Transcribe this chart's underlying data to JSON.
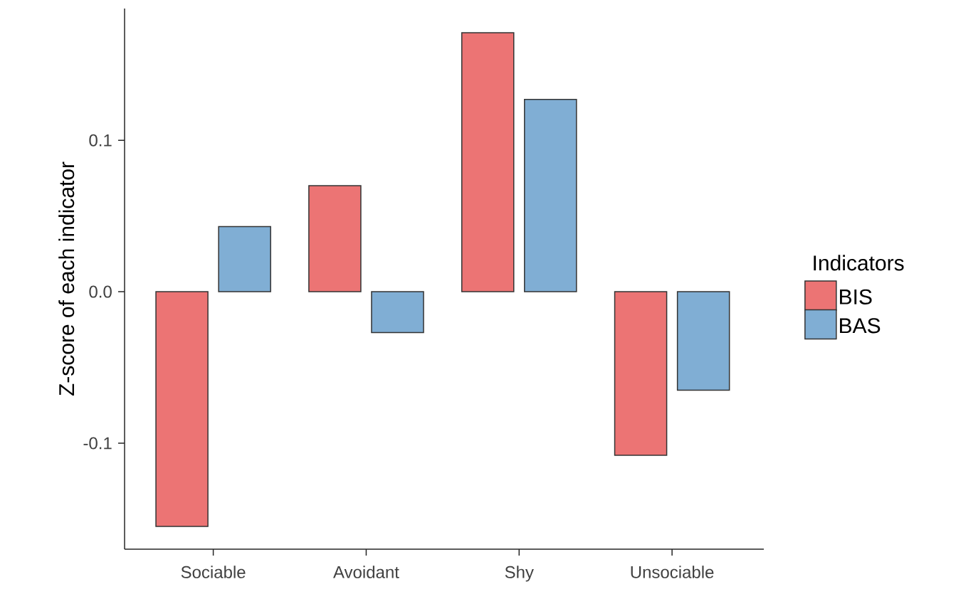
{
  "chart_data": {
    "type": "bar",
    "ylabel": "Z-score of each indicator",
    "legend_title": "Indicators",
    "legend": "right",
    "categories": [
      "Sociable",
      "Avoidant",
      "Shy",
      "Unsociable"
    ],
    "series": [
      {
        "name": "BIS",
        "color": "#ec7474",
        "values": [
          -0.155,
          0.07,
          0.171,
          -0.108
        ]
      },
      {
        "name": "BAS",
        "color": "#80aed4",
        "values": [
          0.043,
          -0.027,
          0.127,
          -0.065
        ]
      }
    ],
    "ylim": [
      -0.17,
      0.187
    ],
    "yticks": [
      -0.1,
      {
        "value": 0,
        "label": "0.0"
      },
      0.1
    ]
  }
}
